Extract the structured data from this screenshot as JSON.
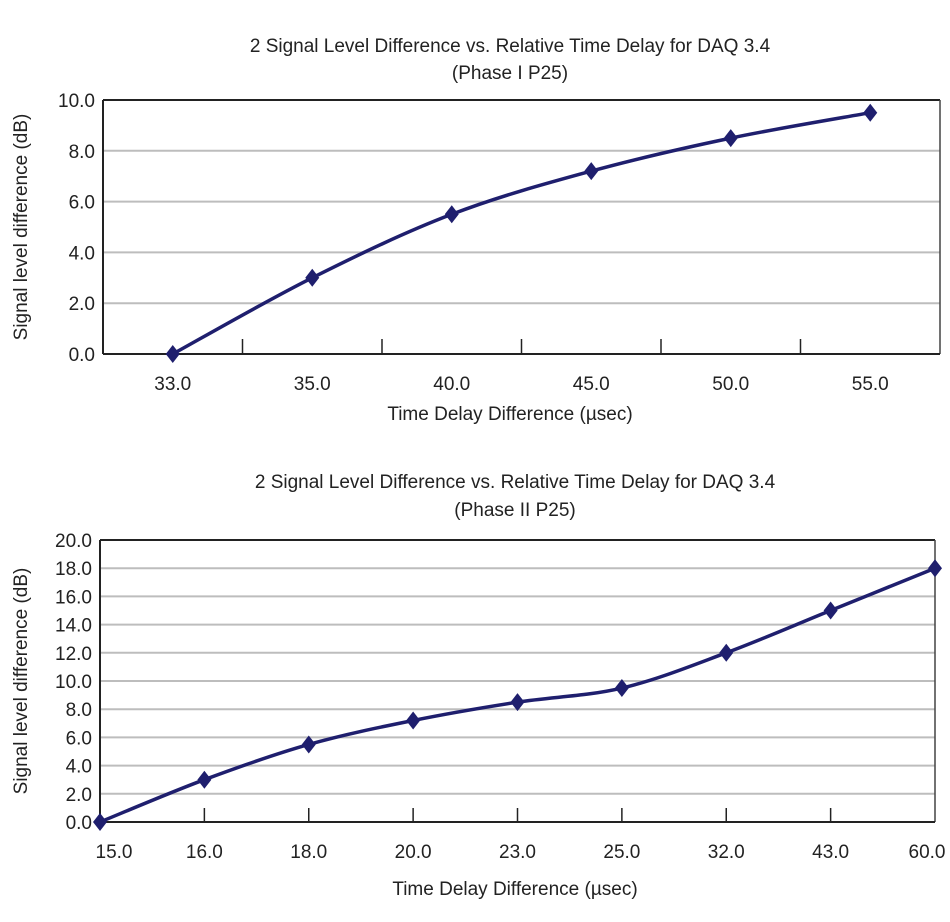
{
  "chart_data": [
    {
      "type": "line",
      "title": "2 Signal Level Difference vs. Relative Time Delay for DAQ 3.4",
      "subtitle": "(Phase I P25)",
      "xlabel": "Time Delay Difference (µsec)",
      "ylabel": "Signal level difference (dB)",
      "categories": [
        "33.0",
        "35.0",
        "40.0",
        "45.0",
        "50.0",
        "55.0"
      ],
      "values": [
        0.0,
        3.0,
        5.5,
        7.2,
        8.5,
        9.5
      ],
      "ylim": [
        0,
        10
      ],
      "yticks": [
        "0.0",
        "2.0",
        "4.0",
        "6.0",
        "8.0",
        "10.0"
      ],
      "grid": true,
      "legend": "none",
      "series_color": "#1f1f6e",
      "marker": "diamond"
    },
    {
      "type": "line",
      "title": "2 Signal Level Difference vs. Relative Time Delay for DAQ 3.4",
      "subtitle": "(Phase II P25)",
      "xlabel": "Time Delay Difference (µsec)",
      "ylabel": "Signal level difference (dB)",
      "categories": [
        "15.0",
        "16.0",
        "18.0",
        "20.0",
        "23.0",
        "25.0",
        "32.0",
        "43.0",
        "60.0"
      ],
      "values": [
        0.0,
        3.0,
        5.5,
        7.2,
        8.5,
        9.5,
        12.0,
        15.0,
        18.0
      ],
      "ylim": [
        0,
        20
      ],
      "yticks": [
        "0.0",
        "2.0",
        "4.0",
        "6.0",
        "8.0",
        "10.0",
        "12.0",
        "14.0",
        "16.0",
        "18.0",
        "20.0"
      ],
      "grid": true,
      "legend": "none",
      "series_color": "#1f1f6e",
      "marker": "diamond"
    }
  ]
}
